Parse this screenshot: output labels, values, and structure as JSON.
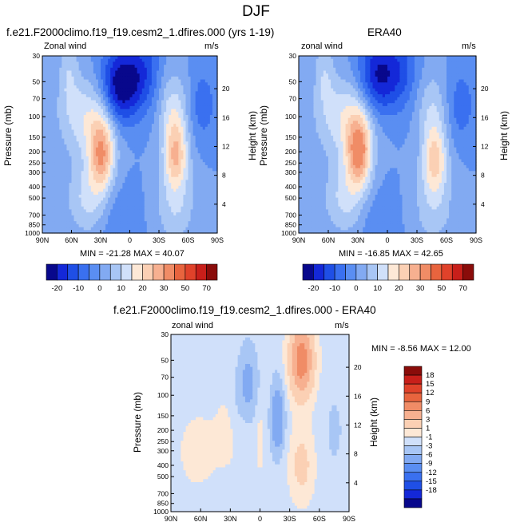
{
  "figure_title": "DJF",
  "chart_data": [
    {
      "type": "heatmap",
      "name": "model",
      "title": "f.e21.F2000climo.f19_f19.cesm2_1.dfires.000 (yrs 1-19)",
      "left_label": "Zonal wind",
      "right_label": "m/s",
      "xlabel": "",
      "ylabel": "Pressure (mb)",
      "y2label": "Height (km)",
      "x_ticks": [
        "90N",
        "60N",
        "30N",
        "0",
        "30S",
        "60S",
        "90S"
      ],
      "y_ticks": [
        "30",
        "50",
        "70",
        "100",
        "150",
        "200",
        "250",
        "300",
        "400",
        "500",
        "700",
        "850",
        "1000"
      ],
      "y2_ticks": [
        "20",
        "16",
        "12",
        "8",
        "4"
      ],
      "stats": "MIN = -21.28   MAX = 40.07",
      "min": -21.28,
      "max": 40.07,
      "features": [
        {
          "lat": 63,
          "p": 40,
          "amp": 8,
          "slat": 7,
          "sp": 25
        },
        {
          "lat": 44,
          "p": 100,
          "amp": 14,
          "slat": 20,
          "sp": 150
        },
        {
          "lat": 29,
          "p": 210,
          "amp": 26,
          "slat": 9,
          "sp": 110
        },
        {
          "lat": 41,
          "p": 500,
          "amp": 12,
          "slat": 16,
          "sp": 350
        },
        {
          "lat": 10,
          "p": 55,
          "amp": -25,
          "slat": 14,
          "sp": 45
        },
        {
          "lat": 12,
          "p": 800,
          "amp": -6,
          "slat": 14,
          "sp": 300
        },
        {
          "lat": -14,
          "p": 40,
          "amp": -12,
          "slat": 13,
          "sp": 80
        },
        {
          "lat": -47,
          "p": 210,
          "amp": 24,
          "slat": 9,
          "sp": 110
        },
        {
          "lat": -44,
          "p": 80,
          "amp": 10,
          "slat": 11,
          "sp": 70
        },
        {
          "lat": -47,
          "p": 600,
          "amp": 10,
          "slat": 14,
          "sp": 350
        },
        {
          "lat": -75,
          "p": 80,
          "amp": -8,
          "slat": 10,
          "sp": 60
        }
      ]
    },
    {
      "type": "heatmap",
      "name": "era40",
      "title": "ERA40",
      "left_label": "zonal wind",
      "right_label": "m/s",
      "xlabel": "",
      "ylabel": "Pressure (mb)",
      "y2label": "Height (km)",
      "x_ticks": [
        "90N",
        "60N",
        "30N",
        "0",
        "30S",
        "60S",
        "90S"
      ],
      "y_ticks": [
        "30",
        "50",
        "70",
        "100",
        "150",
        "200",
        "250",
        "300",
        "400",
        "500",
        "700",
        "850",
        "1000"
      ],
      "y2_ticks": [
        "20",
        "16",
        "12",
        "8",
        "4"
      ],
      "stats": "MIN = -16.85   MAX = 42.65",
      "min": -16.85,
      "max": 42.65,
      "features": [
        {
          "lat": 64,
          "p": 40,
          "amp": 8,
          "slat": 7,
          "sp": 25
        },
        {
          "lat": 44,
          "p": 100,
          "amp": 14,
          "slat": 20,
          "sp": 150
        },
        {
          "lat": 29,
          "p": 200,
          "amp": 30,
          "slat": 9,
          "sp": 110
        },
        {
          "lat": 41,
          "p": 500,
          "amp": 12,
          "slat": 16,
          "sp": 350
        },
        {
          "lat": 10,
          "p": 45,
          "amp": -20,
          "slat": 14,
          "sp": 45
        },
        {
          "lat": 12,
          "p": 800,
          "amp": -5,
          "slat": 14,
          "sp": 300
        },
        {
          "lat": -14,
          "p": 40,
          "amp": -10,
          "slat": 13,
          "sp": 80
        },
        {
          "lat": -48,
          "p": 230,
          "amp": 21,
          "slat": 9,
          "sp": 110
        },
        {
          "lat": -44,
          "p": 80,
          "amp": 8,
          "slat": 11,
          "sp": 70
        },
        {
          "lat": -47,
          "p": 600,
          "amp": 9,
          "slat": 14,
          "sp": 350
        },
        {
          "lat": -75,
          "p": 80,
          "amp": -8,
          "slat": 10,
          "sp": 60
        }
      ]
    },
    {
      "type": "heatmap",
      "name": "difference",
      "title": "f.e21.F2000climo.f19_f19.cesm2_1.dfires.000 - ERA40",
      "left_label": "zonal wind",
      "right_label": "m/s",
      "xlabel": "",
      "ylabel": "Pressure (mb)",
      "y2label": "Height (km)",
      "x_ticks": [
        "90N",
        "60N",
        "30N",
        "0",
        "30S",
        "60S",
        "90S"
      ],
      "y_ticks": [
        "30",
        "50",
        "70",
        "100",
        "150",
        "200",
        "250",
        "300",
        "400",
        "500",
        "700",
        "850",
        "1000"
      ],
      "y2_ticks": [
        "20",
        "16",
        "12",
        "8",
        "4"
      ],
      "stats": "MIN = -8.56   MAX = 12.00",
      "min": -8.56,
      "max": 12.0,
      "features": [
        {
          "lat": 63,
          "p": 300,
          "amp": 2,
          "slat": 14,
          "sp": 600
        },
        {
          "lat": 30,
          "p": 200,
          "amp": 2.2,
          "slat": 10,
          "sp": 500
        },
        {
          "lat": 25,
          "p": 150,
          "amp": -1.6,
          "slat": 6,
          "sp": 200
        },
        {
          "lat": 12,
          "p": 80,
          "amp": -4,
          "slat": 7,
          "sp": 90
        },
        {
          "lat": 0,
          "p": 250,
          "amp": 2,
          "slat": 3,
          "sp": 120
        },
        {
          "lat": -18,
          "p": 160,
          "amp": -6,
          "slat": 5,
          "sp": 120
        },
        {
          "lat": -42,
          "p": 50,
          "amp": 11,
          "slat": 9,
          "sp": 80
        },
        {
          "lat": -42,
          "p": 400,
          "amp": 4,
          "slat": 9,
          "sp": 500
        },
        {
          "lat": -75,
          "p": 200,
          "amp": -1.5,
          "slat": 7,
          "sp": 300
        }
      ]
    }
  ],
  "colorbars": {
    "abs": {
      "ticks": [
        "-20",
        "-10",
        "0",
        "10",
        "20",
        "30",
        "50",
        "70"
      ],
      "colors": [
        "#08088c",
        "#1428d8",
        "#1f4fe6",
        "#3a70f0",
        "#5a8ef2",
        "#82aaf2",
        "#a8c6f5",
        "#d0e0fa",
        "#fde8d6",
        "#fbd0b4",
        "#f7b090",
        "#f08c66",
        "#e8643e",
        "#e0422a",
        "#c81f1a",
        "#8a0c0a"
      ]
    },
    "diff": {
      "ticks": [
        "18",
        "15",
        "12",
        "9",
        "6",
        "3",
        "1",
        "-1",
        "-3",
        "-6",
        "-9",
        "-12",
        "-15",
        "-18"
      ],
      "colors": [
        "#8a0c0a",
        "#c81f1a",
        "#e0422a",
        "#e8643e",
        "#f08c66",
        "#f7b090",
        "#fbd0b4",
        "#fde8d6",
        "#d0e0fa",
        "#a8c6f5",
        "#82aaf2",
        "#5a8ef2",
        "#3a70f0",
        "#1f4fe6",
        "#1428d8",
        "#08088c"
      ]
    }
  }
}
